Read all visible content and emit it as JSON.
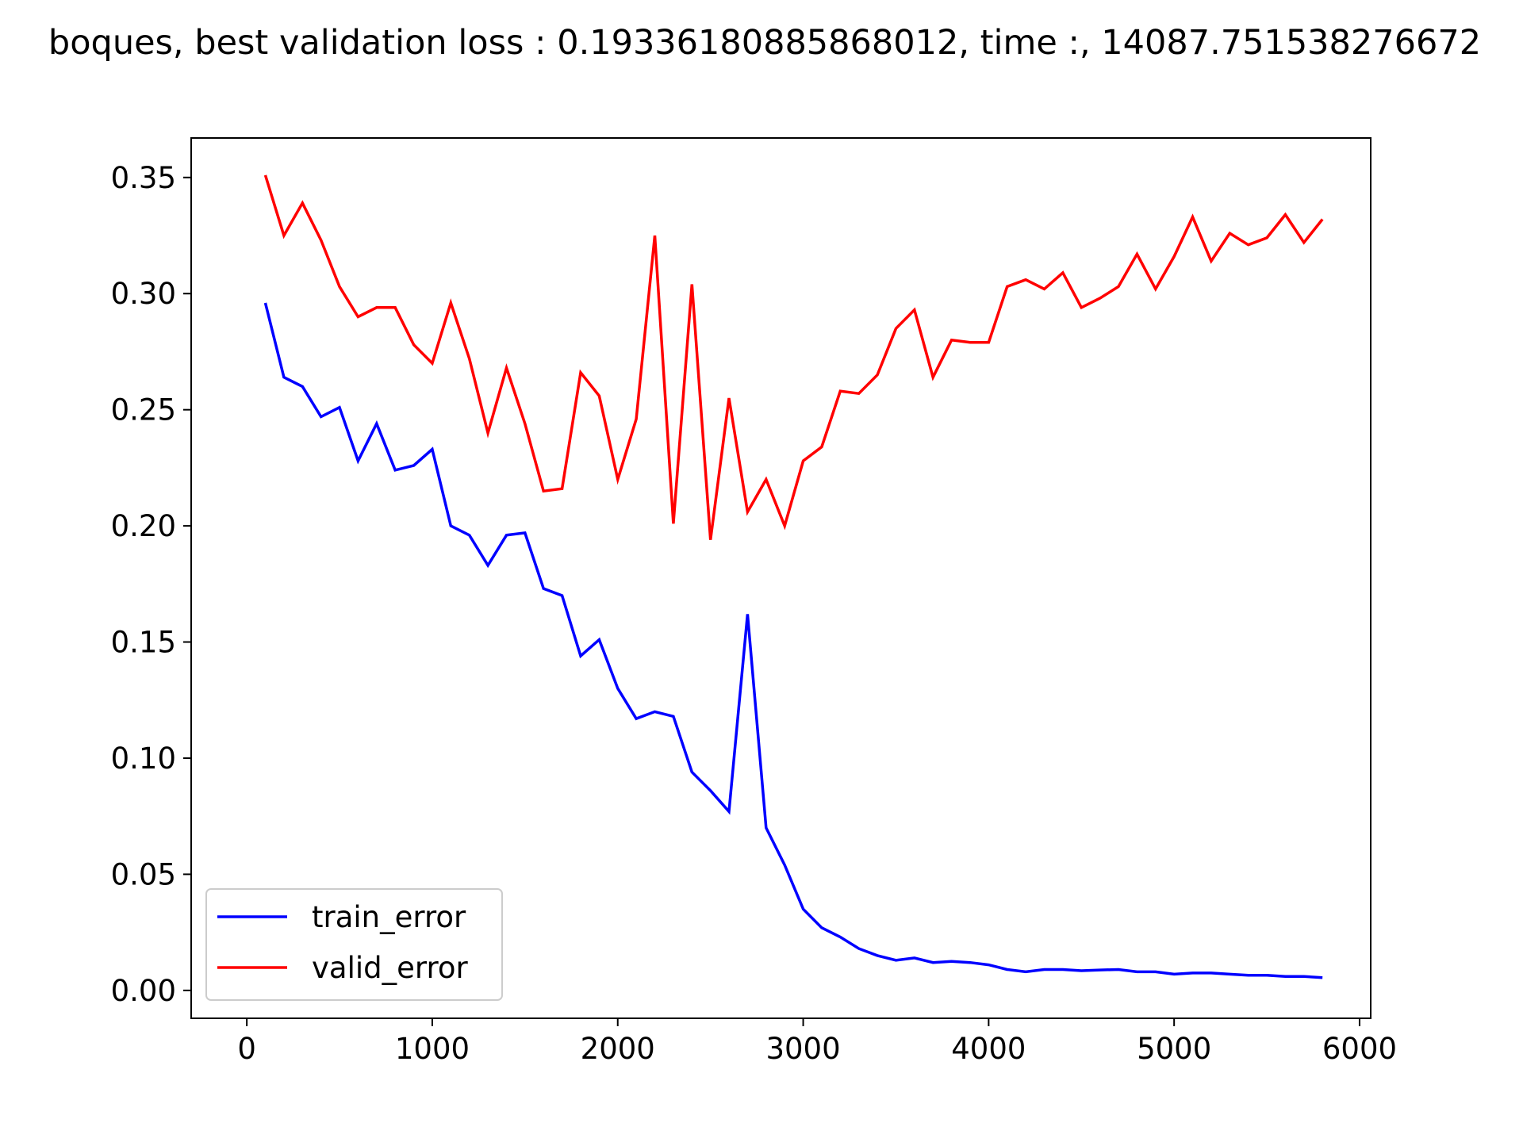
{
  "chart_data": {
    "type": "line",
    "title": "boques, best validation loss : 0.19336180885868012, time :, 14087.751538276672",
    "xlabel": "",
    "ylabel": "",
    "xlim": [
      -300,
      6060
    ],
    "ylim": [
      -0.012,
      0.367
    ],
    "x_ticks": [
      0,
      1000,
      2000,
      3000,
      4000,
      5000,
      6000
    ],
    "x_tick_labels": [
      "0",
      "1000",
      "2000",
      "3000",
      "4000",
      "5000",
      "6000"
    ],
    "y_ticks": [
      0.0,
      0.05,
      0.1,
      0.15,
      0.2,
      0.25,
      0.3,
      0.35
    ],
    "y_tick_labels": [
      "0.00",
      "0.05",
      "0.10",
      "0.15",
      "0.20",
      "0.25",
      "0.30",
      "0.35"
    ],
    "grid": false,
    "legend_position": "lower-left",
    "x": [
      100,
      200,
      300,
      400,
      500,
      600,
      700,
      800,
      900,
      1000,
      1100,
      1200,
      1300,
      1400,
      1500,
      1600,
      1700,
      1800,
      1900,
      2000,
      2100,
      2200,
      2300,
      2400,
      2500,
      2600,
      2700,
      2800,
      2900,
      3000,
      3100,
      3200,
      3300,
      3400,
      3500,
      3600,
      3700,
      3800,
      3900,
      4000,
      4100,
      4200,
      4300,
      4400,
      4500,
      4600,
      4700,
      4800,
      4900,
      5000,
      5100,
      5200,
      5300,
      5400,
      5500,
      5600,
      5700,
      5800
    ],
    "series": [
      {
        "name": "train_error",
        "color": "#0000ff",
        "values": [
          0.296,
          0.264,
          0.26,
          0.247,
          0.251,
          0.228,
          0.244,
          0.224,
          0.226,
          0.233,
          0.2,
          0.196,
          0.183,
          0.196,
          0.197,
          0.173,
          0.17,
          0.144,
          0.151,
          0.13,
          0.117,
          0.12,
          0.118,
          0.094,
          0.086,
          0.077,
          0.162,
          0.07,
          0.054,
          0.035,
          0.027,
          0.023,
          0.018,
          0.015,
          0.013,
          0.014,
          0.012,
          0.0125,
          0.012,
          0.011,
          0.009,
          0.008,
          0.009,
          0.009,
          0.0085,
          0.0088,
          0.009,
          0.008,
          0.008,
          0.007,
          0.0075,
          0.0075,
          0.007,
          0.0065,
          0.0065,
          0.006,
          0.006,
          0.0055
        ]
      },
      {
        "name": "valid_error",
        "color": "#ff0000",
        "values": [
          0.351,
          0.325,
          0.339,
          0.323,
          0.303,
          0.29,
          0.294,
          0.294,
          0.278,
          0.27,
          0.296,
          0.272,
          0.24,
          0.268,
          0.244,
          0.215,
          0.216,
          0.266,
          0.256,
          0.22,
          0.246,
          0.325,
          0.201,
          0.304,
          0.194,
          0.255,
          0.206,
          0.22,
          0.2,
          0.228,
          0.234,
          0.258,
          0.257,
          0.265,
          0.285,
          0.293,
          0.264,
          0.28,
          0.279,
          0.279,
          0.303,
          0.306,
          0.302,
          0.309,
          0.294,
          0.298,
          0.303,
          0.317,
          0.302,
          0.316,
          0.333,
          0.314,
          0.326,
          0.321,
          0.324,
          0.334,
          0.322,
          0.332
        ]
      }
    ]
  }
}
